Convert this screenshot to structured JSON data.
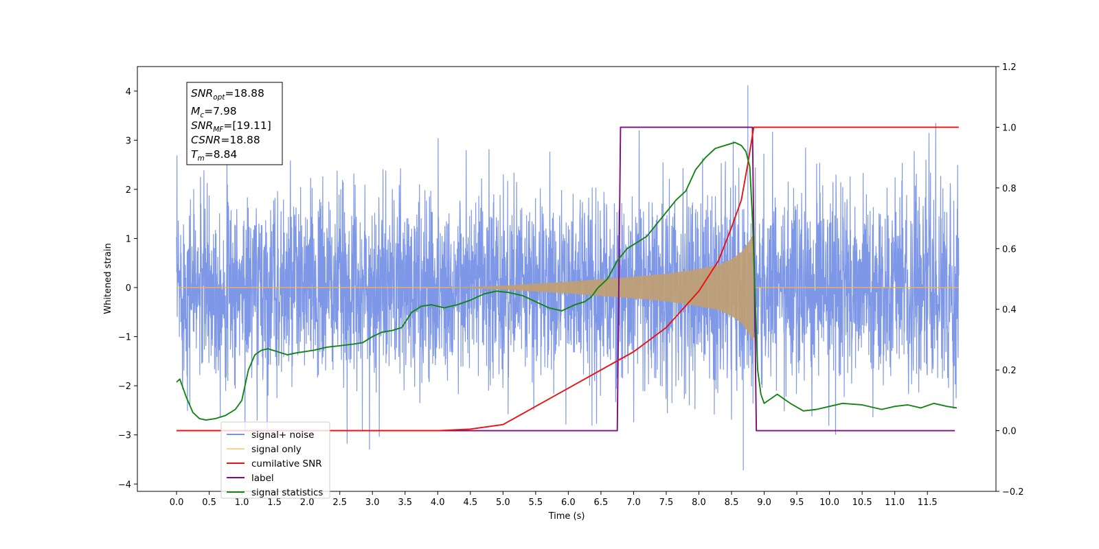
{
  "chart_data": {
    "type": "line",
    "xlabel": "Time (s)",
    "ylabel_left": "Whitened strain",
    "ylabel_right": "",
    "xlim": [
      -0.6,
      12.55
    ],
    "ylim_left": [
      -4.15,
      4.5
    ],
    "ylim_right": [
      -0.2,
      1.2
    ],
    "x_ticks": [
      0.0,
      0.5,
      1.0,
      1.5,
      2.0,
      2.5,
      3.0,
      3.5,
      4.0,
      4.5,
      5.0,
      5.5,
      6.0,
      6.5,
      7.0,
      7.5,
      8.0,
      8.5,
      9.0,
      9.5,
      10.0,
      10.5,
      11.0,
      11.5
    ],
    "x_tick_labels": [
      "0.0",
      "0.5",
      "1.0",
      "1.5",
      "2.0",
      "2.5",
      "3.0",
      "3.5",
      "4.0",
      "4.5",
      "5.0",
      "5.5",
      "6.0",
      "6.5",
      "7.0",
      "7.5",
      "8.0",
      "8.5",
      "9.0",
      "9.5",
      "10.0",
      "10.5",
      "11.0",
      "11.5"
    ],
    "y_left_ticks": [
      -4,
      -3,
      -2,
      -1,
      0,
      1,
      2,
      3,
      4
    ],
    "y_left_tick_labels": [
      "−4",
      "−3",
      "−2",
      "−1",
      "0",
      "1",
      "2",
      "3",
      "4"
    ],
    "y_right_ticks": [
      -0.2,
      0.0,
      0.2,
      0.4,
      0.6,
      0.8,
      1.0,
      1.2
    ],
    "y_right_tick_labels": [
      "−0.2",
      "0.0",
      "0.2",
      "0.4",
      "0.6",
      "0.8",
      "1.0",
      "1.2"
    ],
    "grid": false,
    "legend_position": "bottom-left",
    "annotation": {
      "snr_opt": "18.88",
      "mc": "7.98",
      "snr_mf": "[19.11]",
      "csnr": "18.88",
      "tm": "8.84"
    },
    "series": [
      {
        "name": "signal+ noise",
        "axis": "left",
        "color": "#7791e6",
        "description_only": true,
        "x_range": [
          0.0,
          11.98
        ],
        "typical_amplitude": 1.0,
        "peak_max": 4.12,
        "peak_max_x": 8.75,
        "peak_min": -3.72,
        "peak_min_x": 8.68
      },
      {
        "name": "signal only",
        "axis": "left",
        "color": "#ffb347",
        "chirp_start": 4.2,
        "chirp_end": 8.84,
        "envelope_x": [
          0.0,
          4.2,
          5.0,
          6.0,
          7.0,
          7.5,
          8.0,
          8.3,
          8.5,
          8.65,
          8.75,
          8.84,
          8.86,
          11.98
        ],
        "envelope_amp": [
          0.0,
          0.0,
          0.04,
          0.12,
          0.22,
          0.28,
          0.38,
          0.46,
          0.58,
          0.72,
          0.9,
          1.1,
          0.0,
          0.0
        ]
      },
      {
        "name": "cumilative SNR",
        "axis": "right",
        "color": "#e8120c",
        "x": [
          0.0,
          4.0,
          4.5,
          5.0,
          5.5,
          6.0,
          6.5,
          7.0,
          7.5,
          8.0,
          8.3,
          8.5,
          8.65,
          8.75,
          8.84,
          11.98
        ],
        "values": [
          0.0,
          0.0,
          0.005,
          0.02,
          0.08,
          0.14,
          0.2,
          0.26,
          0.34,
          0.46,
          0.56,
          0.67,
          0.76,
          0.88,
          1.0,
          1.0
        ]
      },
      {
        "name": "label",
        "axis": "right",
        "color": "#7a0c7e",
        "x": [
          0.0,
          6.75,
          6.8,
          8.82,
          8.88,
          11.92
        ],
        "values": [
          0.0,
          0.0,
          1.0,
          1.0,
          0.0,
          0.0
        ]
      },
      {
        "name": "signal statistics",
        "axis": "right",
        "color": "#118411",
        "x": [
          0.0,
          0.05,
          0.15,
          0.25,
          0.35,
          0.45,
          0.6,
          0.75,
          0.9,
          1.0,
          1.1,
          1.2,
          1.3,
          1.4,
          1.55,
          1.7,
          1.8,
          1.95,
          2.1,
          2.2,
          2.3,
          2.5,
          2.7,
          2.85,
          3.0,
          3.15,
          3.3,
          3.45,
          3.6,
          3.75,
          3.9,
          4.1,
          4.3,
          4.5,
          4.7,
          4.9,
          5.1,
          5.3,
          5.5,
          5.7,
          5.9,
          6.1,
          6.25,
          6.35,
          6.45,
          6.6,
          6.75,
          6.9,
          7.05,
          7.2,
          7.35,
          7.5,
          7.65,
          7.8,
          7.95,
          8.1,
          8.25,
          8.4,
          8.55,
          8.65,
          8.72,
          8.78,
          8.82,
          8.86,
          8.9,
          8.95,
          9.0,
          9.2,
          9.4,
          9.6,
          9.8,
          10.0,
          10.2,
          10.5,
          10.8,
          11.0,
          11.2,
          11.4,
          11.6,
          11.8,
          11.95
        ],
        "values": [
          0.16,
          0.17,
          0.11,
          0.06,
          0.04,
          0.035,
          0.04,
          0.05,
          0.07,
          0.1,
          0.2,
          0.25,
          0.265,
          0.27,
          0.26,
          0.25,
          0.255,
          0.26,
          0.265,
          0.27,
          0.275,
          0.28,
          0.285,
          0.29,
          0.31,
          0.325,
          0.33,
          0.34,
          0.39,
          0.41,
          0.415,
          0.405,
          0.415,
          0.43,
          0.45,
          0.46,
          0.455,
          0.445,
          0.425,
          0.405,
          0.395,
          0.415,
          0.425,
          0.44,
          0.47,
          0.5,
          0.56,
          0.6,
          0.62,
          0.64,
          0.68,
          0.72,
          0.76,
          0.79,
          0.86,
          0.9,
          0.93,
          0.94,
          0.95,
          0.94,
          0.92,
          0.87,
          0.7,
          0.45,
          0.2,
          0.12,
          0.09,
          0.12,
          0.09,
          0.065,
          0.07,
          0.08,
          0.09,
          0.085,
          0.07,
          0.08,
          0.085,
          0.075,
          0.09,
          0.08,
          0.075
        ]
      }
    ]
  }
}
